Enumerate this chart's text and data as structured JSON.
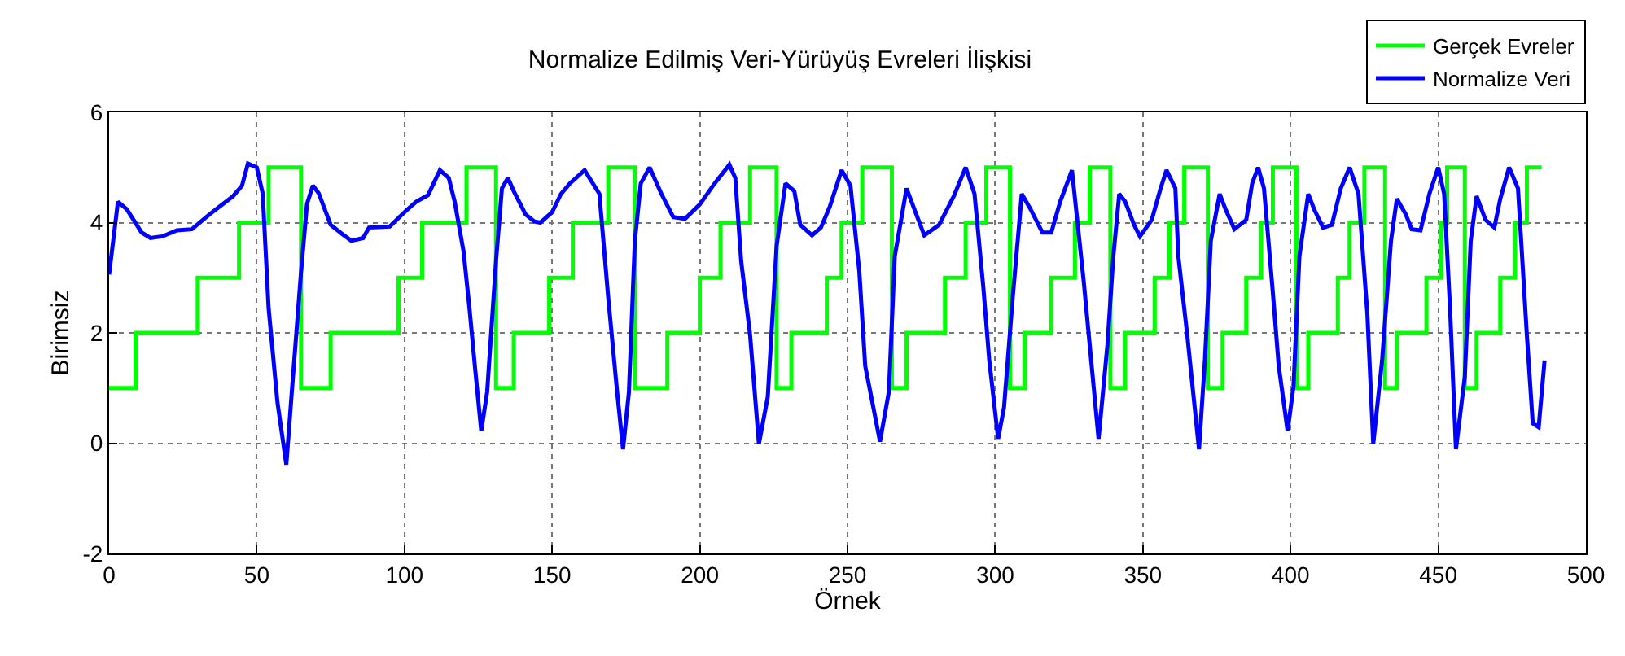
{
  "chart_data": {
    "type": "line",
    "title": "Normalize Edilmiş Veri-Yürüyüş Evreleri İlişkisi",
    "xlabel": "Örnek",
    "ylabel": "Birimsiz",
    "xlim": [
      0,
      500
    ],
    "xticks": [
      0,
      50,
      100,
      150,
      200,
      250,
      300,
      350,
      400,
      450,
      500
    ],
    "ylim": [
      -2,
      6
    ],
    "yticks": [
      -2,
      0,
      2,
      4,
      6
    ],
    "grid": true,
    "legend": "top right",
    "marker": "none",
    "line_style": "solid",
    "series": [
      {
        "name": "Gerçek Evreler",
        "type": "step",
        "color": "#00ff00",
        "x": [
          0,
          9,
          30,
          44,
          54,
          65,
          75,
          98,
          106,
          121,
          131,
          137,
          149,
          157,
          169,
          178,
          189,
          200,
          207,
          217,
          226,
          231,
          243,
          248,
          255,
          265,
          270,
          283,
          290,
          297,
          305,
          310,
          319,
          327,
          332,
          339,
          344,
          354,
          359,
          364,
          372,
          377,
          385,
          390,
          394,
          402,
          406,
          416,
          420,
          425,
          432,
          436,
          446,
          451,
          453,
          459,
          463,
          471,
          476,
          480,
          485
        ],
        "values": [
          1,
          2,
          3,
          4,
          5,
          1,
          2,
          3,
          4,
          5,
          1,
          2,
          3,
          4,
          5,
          1,
          2,
          3,
          4,
          5,
          1,
          2,
          3,
          4,
          5,
          1,
          2,
          3,
          4,
          5,
          1,
          2,
          3,
          4,
          5,
          1,
          2,
          3,
          4,
          5,
          1,
          2,
          3,
          4,
          5,
          1,
          2,
          3,
          4,
          5,
          1,
          2,
          3,
          4,
          5,
          1,
          2,
          3,
          4,
          5,
          5
        ]
      },
      {
        "name": "Normalize Veri",
        "color": "#0000ff",
        "x": [
          0,
          3,
          6,
          11,
          14,
          18,
          23,
          28,
          34,
          42,
          45,
          47,
          50,
          52,
          54,
          57,
          60,
          62,
          65,
          67,
          69,
          71,
          75,
          79,
          82,
          86,
          88,
          95,
          101,
          104,
          108,
          112,
          115,
          117,
          120,
          122,
          124,
          126,
          128,
          131,
          133,
          135,
          137,
          141,
          144,
          146,
          150,
          153,
          156,
          161,
          166,
          169,
          172,
          174,
          176,
          178,
          180,
          183,
          187,
          191,
          195,
          200,
          205,
          210,
          212,
          214,
          217,
          220,
          223,
          226,
          229,
          232,
          234,
          238,
          241,
          244,
          248,
          251,
          254,
          256,
          261,
          264,
          266,
          270,
          273,
          276,
          281,
          286,
          290,
          293,
          296,
          298,
          301,
          303,
          306,
          309,
          312,
          316,
          319,
          322,
          326,
          330,
          332,
          335,
          338,
          340,
          342,
          344,
          347,
          349,
          353,
          356,
          358,
          361,
          362,
          365,
          369,
          371,
          373,
          376,
          378,
          381,
          385,
          387,
          389,
          391,
          394,
          396,
          399,
          401,
          403,
          406,
          408,
          411,
          414,
          417,
          420,
          423,
          426,
          428,
          431,
          434,
          436,
          439,
          441,
          444,
          447,
          450,
          452,
          454,
          456,
          459,
          461,
          463,
          466,
          469,
          471,
          474,
          477,
          480,
          482,
          484,
          486
        ],
        "values": [
          3.06,
          4.38,
          4.24,
          3.82,
          3.72,
          3.75,
          3.86,
          3.88,
          4.15,
          4.48,
          4.67,
          5.07,
          5.0,
          4.53,
          2.45,
          0.74,
          -0.39,
          1.03,
          3.11,
          4.34,
          4.67,
          4.53,
          3.96,
          3.79,
          3.67,
          3.72,
          3.91,
          3.93,
          4.24,
          4.38,
          4.5,
          4.95,
          4.81,
          4.38,
          3.48,
          2.45,
          1.31,
          0.22,
          0.93,
          3.3,
          4.62,
          4.81,
          4.57,
          4.15,
          4.02,
          4.0,
          4.19,
          4.52,
          4.71,
          4.95,
          4.52,
          2.63,
          0.93,
          -0.11,
          0.93,
          3.67,
          4.71,
          5.0,
          4.52,
          4.1,
          4.07,
          4.33,
          4.71,
          5.05,
          4.81,
          3.3,
          1.97,
          -0.01,
          0.84,
          3.58,
          4.71,
          4.57,
          3.96,
          3.77,
          3.91,
          4.29,
          4.95,
          4.67,
          3.11,
          1.4,
          0.03,
          0.93,
          3.39,
          4.62,
          4.19,
          3.77,
          3.96,
          4.48,
          5.0,
          4.52,
          2.82,
          1.5,
          0.08,
          0.65,
          2.68,
          4.52,
          4.24,
          3.82,
          3.82,
          4.38,
          4.95,
          2.92,
          1.78,
          0.08,
          1.78,
          3.39,
          4.52,
          4.38,
          3.96,
          3.75,
          4.05,
          4.62,
          4.95,
          4.62,
          3.39,
          1.97,
          -0.11,
          1.5,
          3.67,
          4.52,
          4.24,
          3.88,
          4.05,
          4.71,
          5.0,
          4.62,
          2.73,
          1.4,
          0.22,
          1.03,
          3.39,
          4.52,
          4.24,
          3.91,
          3.96,
          4.62,
          5.0,
          4.52,
          2.35,
          -0.01,
          1.5,
          3.67,
          4.43,
          4.15,
          3.88,
          3.86,
          4.52,
          5.0,
          4.52,
          2.44,
          -0.11,
          1.21,
          3.67,
          4.48,
          4.05,
          3.91,
          4.43,
          5.0,
          4.62,
          1.97,
          0.36,
          0.29,
          1.5
        ]
      }
    ]
  }
}
